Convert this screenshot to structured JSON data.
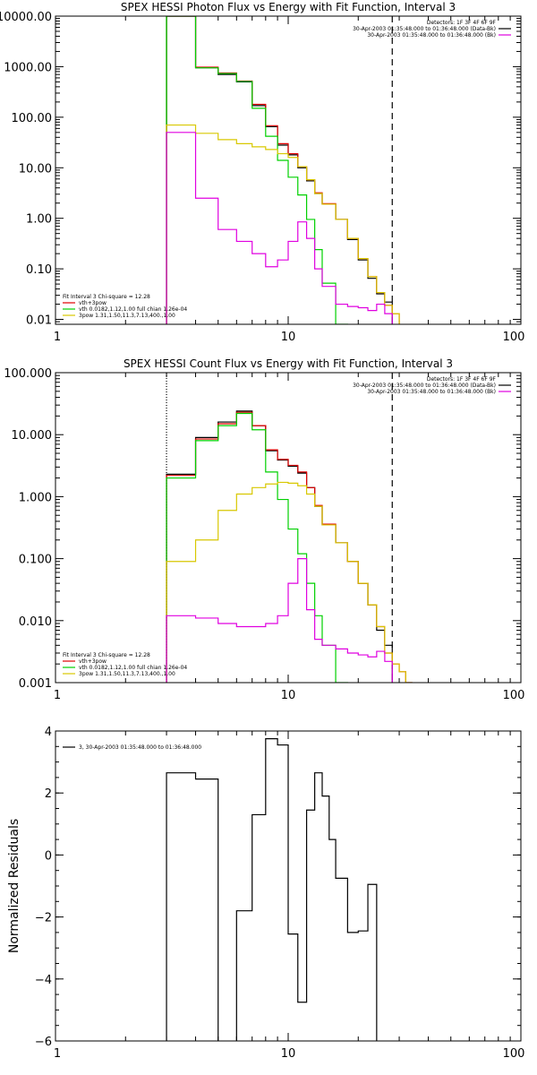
{
  "colors": {
    "black": "#000000",
    "red": "#e00000",
    "green": "#00d000",
    "yellow": "#d8c800",
    "magenta": "#e000e0"
  },
  "chart_data": [
    {
      "type": "line",
      "title": "SPEX HESSI Photon Flux vs Energy with Fit Function, Interval 3",
      "x_scale": "log",
      "y_scale": "log",
      "xlim": [
        1,
        100
      ],
      "ylim": [
        0.008,
        10000
      ],
      "x_tick_labels": [
        "1",
        "10",
        "100"
      ],
      "y_tick_labels": [
        "0.01",
        "0.10",
        "1.00",
        "10.00",
        "100.00",
        "1000.00",
        "10000.00"
      ],
      "legend_right": [
        {
          "text": "Detectors: 1F 3F 4F 6F 9F",
          "color": ""
        },
        {
          "text": "30-Apr-2003 01:35:48.000 to 01:36:48.000 (Data-Bk)",
          "color": "black"
        },
        {
          "text": "30-Apr-2003 01:35:48.000 to 01:36:48.000 (Bk)",
          "color": "magenta"
        }
      ],
      "legend_left": [
        {
          "text": "Fit Interval 3    Chi-square = 12.28",
          "color": ""
        },
        {
          "text": "vth+3pow",
          "color": "red"
        },
        {
          "text": "vth 0.0182,1.12,1.00  full chian 1.26e-04",
          "color": "green"
        },
        {
          "text": "3pow 1.31,1.50,11.3,7.13,400.,1.00",
          "color": "yellow"
        }
      ],
      "vlines": [
        {
          "x": 3,
          "style": "solid",
          "color": "green"
        },
        {
          "x": 28,
          "style": "dashed",
          "color": "black"
        }
      ],
      "edges": [
        3,
        4,
        5,
        6,
        7,
        8,
        9,
        10,
        11,
        12,
        13,
        14,
        16,
        18,
        20,
        22,
        24,
        26,
        28,
        30
      ],
      "series": [
        {
          "color": "black",
          "values": [
            10000,
            950,
            700,
            500,
            170,
            65,
            28,
            18,
            10,
            5.5,
            3.1,
            1.9,
            0.95,
            0.38,
            0.15,
            0.065,
            0.032,
            0.022,
            null
          ]
        },
        {
          "color": "red",
          "values": [
            10000,
            980,
            750,
            520,
            180,
            68,
            30,
            19,
            10.5,
            5.8,
            3.2,
            1.95,
            0.95,
            0.4,
            0.16,
            0.07,
            0.034,
            0.019,
            0.013
          ]
        },
        {
          "color": "green",
          "values": [
            10000,
            950,
            730,
            510,
            150,
            42,
            14,
            6.5,
            2.9,
            0.95,
            0.24,
            0.052,
            0.008,
            null,
            null,
            null,
            null,
            null,
            null
          ]
        },
        {
          "color": "yellow",
          "values": [
            70,
            48,
            36,
            30,
            26,
            23,
            19,
            16,
            10.5,
            5.8,
            3.1,
            1.9,
            0.95,
            0.4,
            0.16,
            0.07,
            0.034,
            0.019,
            0.013
          ]
        },
        {
          "color": "magenta",
          "values": [
            50,
            2.5,
            0.6,
            0.35,
            0.2,
            0.11,
            0.15,
            0.35,
            0.85,
            0.4,
            0.1,
            0.045,
            0.02,
            0.018,
            0.017,
            0.015,
            0.02,
            0.013,
            null
          ]
        }
      ]
    },
    {
      "type": "line",
      "title": "SPEX HESSI Count Flux vs Energy with Fit Function, Interval 3",
      "x_scale": "log",
      "y_scale": "log",
      "xlim": [
        1,
        100
      ],
      "ylim": [
        0.001,
        100
      ],
      "x_tick_labels": [
        "1",
        "10",
        "100"
      ],
      "y_tick_labels": [
        "0.001",
        "0.010",
        "0.100",
        "1.000",
        "10.000",
        "100.000"
      ],
      "legend_right": [
        {
          "text": "Detectors: 1F 3F 4F 6F 9F",
          "color": ""
        },
        {
          "text": "30-Apr-2003 01:35:48.000 to 01:36:48.000 (Data-Bk)",
          "color": "black"
        },
        {
          "text": "30-Apr-2003 01:35:48.000 to 01:36:48.000 (Bk)",
          "color": "magenta"
        }
      ],
      "legend_left": [
        {
          "text": "Fit Interval 3    Chi-square = 12.28",
          "color": ""
        },
        {
          "text": "vth+3pow",
          "color": "red"
        },
        {
          "text": "vth 0.0182,1.12,1.00  full chian 1.26e-04",
          "color": "green"
        },
        {
          "text": "3pow 1.31,1.50,11.3,7.13,400.,1.00",
          "color": "yellow"
        }
      ],
      "vlines": [
        {
          "x": 3,
          "style": "dotted",
          "color": "black"
        },
        {
          "x": 28,
          "style": "dashed",
          "color": "black"
        }
      ],
      "edges": [
        3,
        4,
        5,
        6,
        7,
        8,
        9,
        10,
        11,
        12,
        13,
        14,
        16,
        18,
        20,
        22,
        24,
        26,
        28,
        30,
        32,
        34
      ],
      "series": [
        {
          "color": "black",
          "values": [
            2.3,
            9,
            16,
            24,
            14,
            5.5,
            3.9,
            3.1,
            2.4,
            1.4,
            0.7,
            0.35,
            0.18,
            0.09,
            0.04,
            0.018,
            0.007,
            0.004,
            null,
            null,
            null
          ]
        },
        {
          "color": "red",
          "values": [
            2.2,
            8.5,
            15,
            23,
            14,
            5.7,
            4,
            3.2,
            2.5,
            1.4,
            0.72,
            0.36,
            0.18,
            0.09,
            0.04,
            0.018,
            0.008,
            0.003,
            0.002,
            0.0015,
            0.001
          ]
        },
        {
          "color": "green",
          "values": [
            2.0,
            8.0,
            14,
            22,
            12,
            2.5,
            0.9,
            0.3,
            0.12,
            0.04,
            0.012,
            0.004,
            0.001,
            null,
            null,
            null,
            null,
            null,
            null,
            null,
            null
          ]
        },
        {
          "color": "yellow",
          "values": [
            0.09,
            0.2,
            0.6,
            1.1,
            1.4,
            1.6,
            1.7,
            1.65,
            1.5,
            1.1,
            0.7,
            0.35,
            0.18,
            0.09,
            0.04,
            0.018,
            0.008,
            0.003,
            0.002,
            0.0015,
            0.001
          ]
        },
        {
          "color": "magenta",
          "values": [
            0.012,
            0.011,
            0.009,
            0.008,
            0.008,
            0.009,
            0.012,
            0.04,
            0.1,
            0.015,
            0.005,
            0.004,
            0.0035,
            0.003,
            0.0028,
            0.0026,
            0.0032,
            0.0022,
            null,
            null,
            null
          ]
        }
      ]
    },
    {
      "type": "line",
      "title": "",
      "ylabel": "Normalized Residuals",
      "x_scale": "log",
      "y_scale": "linear",
      "xlim": [
        1,
        100
      ],
      "ylim": [
        -6,
        4
      ],
      "x_tick_labels": [
        "1",
        "10",
        "100"
      ],
      "y_tick_labels": [
        "4",
        "2",
        "0",
        "−2",
        "−4",
        "−6"
      ],
      "legend_right": [],
      "legend_left": [
        {
          "text": "3, 30-Apr-2003 01:35:48.000 to 01:36:48.000",
          "color": "black"
        }
      ],
      "vlines": [],
      "edges": [
        3,
        4,
        5,
        6,
        7,
        8,
        9,
        10,
        11,
        12,
        13,
        14,
        15,
        16,
        18,
        20,
        22,
        24,
        26,
        28
      ],
      "series": [
        {
          "color": "black",
          "values": [
            2.65,
            2.45,
            -6.1,
            -1.8,
            1.3,
            3.75,
            3.55,
            -2.55,
            -4.75,
            1.45,
            2.65,
            1.9,
            0.5,
            -0.75,
            -2.5,
            -2.45,
            -0.95,
            null,
            null
          ]
        }
      ]
    }
  ]
}
